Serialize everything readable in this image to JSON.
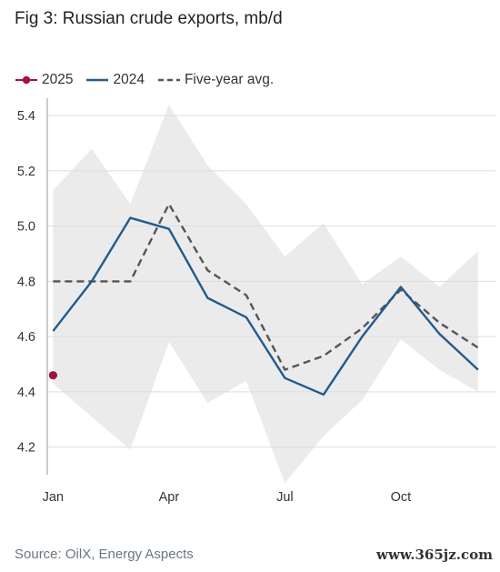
{
  "title": "Fig 3: Russian crude exports, mb/d",
  "source": "Source: OilX, Energy Aspects",
  "watermark": "www.365jz.com",
  "colors": {
    "series_2025": "#a3143c",
    "series_2024": "#215b8e",
    "series_avg": "#555555",
    "range_band": "#ebebeb",
    "grid": "#dddddd",
    "axis": "#999999"
  },
  "chart_data": {
    "type": "line",
    "x_labels": [
      "Jan",
      "Apr",
      "Jul",
      "Oct"
    ],
    "x_label_months": [
      1,
      4,
      7,
      10
    ],
    "ylim": [
      4.1,
      5.45
    ],
    "xlim": [
      0.85,
      12.45
    ],
    "y_ticks": [
      "4.2",
      "4.4",
      "4.6",
      "4.8",
      "5.0",
      "5.2",
      "5.4"
    ],
    "y_tick_values": [
      4.2,
      4.4,
      4.6,
      4.8,
      5.0,
      5.2,
      5.4
    ],
    "grid": true,
    "legend_position": "top-left",
    "legend": [
      "2025",
      "2024",
      "Five-year avg."
    ],
    "band": {
      "months": [
        1,
        2,
        3,
        4,
        5,
        6,
        7,
        8,
        9,
        10,
        11,
        12
      ],
      "upper": [
        5.13,
        5.28,
        5.08,
        5.44,
        5.22,
        5.08,
        4.89,
        5.01,
        4.79,
        4.89,
        4.78,
        4.91
      ],
      "lower": [
        4.43,
        4.31,
        4.19,
        4.58,
        4.36,
        4.44,
        4.07,
        4.24,
        4.37,
        4.59,
        4.48,
        4.4
      ]
    },
    "series": [
      {
        "name": "2025",
        "style": "marker",
        "months": [
          1
        ],
        "values": [
          4.46
        ]
      },
      {
        "name": "2024",
        "style": "solid",
        "months": [
          1,
          2,
          3,
          4,
          5,
          6,
          7,
          8,
          9,
          10,
          11,
          12
        ],
        "values": [
          4.62,
          4.8,
          5.03,
          4.99,
          4.74,
          4.67,
          4.45,
          4.39,
          4.6,
          4.78,
          4.61,
          4.48
        ]
      },
      {
        "name": "Five-year avg.",
        "style": "dashed",
        "months": [
          1,
          2,
          3,
          4,
          5,
          6,
          7,
          8,
          9,
          10,
          11,
          12
        ],
        "values": [
          4.8,
          4.8,
          4.8,
          5.08,
          4.84,
          4.75,
          4.48,
          4.53,
          4.63,
          4.77,
          4.65,
          4.56
        ]
      }
    ]
  }
}
